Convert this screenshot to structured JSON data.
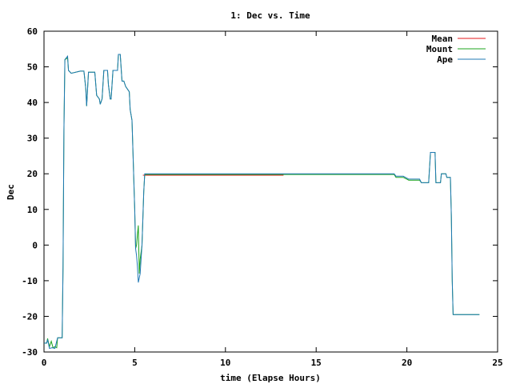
{
  "chart_data": {
    "type": "line",
    "title": "1: Dec vs. Time",
    "xlabel": "time (Elapse Hours)",
    "ylabel": "Dec",
    "xlim": [
      0,
      25
    ],
    "ylim": [
      -30,
      60
    ],
    "xticks": [
      0,
      5,
      10,
      15,
      20,
      25
    ],
    "yticks": [
      -30,
      -20,
      -10,
      0,
      10,
      20,
      30,
      40,
      50,
      60
    ],
    "grid": false,
    "legend_position": "top-right",
    "series": [
      {
        "name": "Mean",
        "color": "#e41a1c",
        "points": [
          [
            5.45,
            19.6
          ],
          [
            13.2,
            19.6
          ]
        ]
      },
      {
        "name": "Mount",
        "color": "#1ea51e",
        "points": [
          [
            0.0,
            -27.5
          ],
          [
            0.15,
            -27.5
          ],
          [
            0.2,
            -26.2
          ],
          [
            0.3,
            -28.5
          ],
          [
            0.4,
            -27.0
          ],
          [
            0.5,
            -28.8
          ],
          [
            0.6,
            -28.5
          ],
          [
            0.7,
            -28.8
          ],
          [
            0.75,
            -26.0
          ],
          [
            1.0,
            -26.0
          ],
          [
            1.05,
            -6.0
          ],
          [
            1.1,
            32.0
          ],
          [
            1.15,
            52.0
          ],
          [
            1.3,
            52.5
          ],
          [
            1.35,
            49.0
          ],
          [
            1.5,
            48.2
          ],
          [
            2.0,
            48.8
          ],
          [
            2.2,
            48.8
          ],
          [
            2.3,
            44.0
          ],
          [
            2.35,
            39.0
          ],
          [
            2.45,
            48.5
          ],
          [
            2.8,
            48.5
          ],
          [
            2.9,
            42.0
          ],
          [
            3.05,
            41.0
          ],
          [
            3.1,
            39.5
          ],
          [
            3.2,
            41.0
          ],
          [
            3.3,
            49.0
          ],
          [
            3.5,
            49.0
          ],
          [
            3.55,
            45.0
          ],
          [
            3.65,
            41.0
          ],
          [
            3.7,
            41.0
          ],
          [
            3.8,
            49.0
          ],
          [
            4.05,
            49.0
          ],
          [
            4.1,
            53.5
          ],
          [
            4.2,
            53.5
          ],
          [
            4.3,
            46.0
          ],
          [
            4.4,
            46.0
          ],
          [
            4.5,
            44.5
          ],
          [
            4.7,
            43.0
          ],
          [
            4.75,
            38.0
          ],
          [
            4.85,
            35.0
          ],
          [
            5.0,
            10.0
          ],
          [
            5.05,
            -1.0
          ],
          [
            5.1,
            0.0
          ],
          [
            5.15,
            3.0
          ],
          [
            5.2,
            5.5
          ],
          [
            5.25,
            -8.0
          ],
          [
            5.3,
            -4.0
          ],
          [
            5.4,
            0.0
          ],
          [
            5.5,
            15.0
          ],
          [
            5.55,
            19.8
          ],
          [
            13.5,
            19.8
          ],
          [
            19.3,
            19.8
          ],
          [
            19.4,
            19.0
          ],
          [
            19.8,
            19.0
          ],
          [
            20.1,
            18.2
          ],
          [
            20.7,
            18.2
          ],
          [
            20.8,
            17.5
          ],
          [
            21.2,
            17.5
          ],
          [
            21.3,
            26.0
          ],
          [
            21.55,
            26.0
          ],
          [
            21.6,
            17.5
          ],
          [
            21.85,
            17.5
          ],
          [
            21.9,
            20.0
          ],
          [
            22.15,
            20.0
          ],
          [
            22.2,
            19.0
          ],
          [
            22.4,
            19.0
          ],
          [
            22.45,
            8.0
          ],
          [
            22.5,
            -10.0
          ],
          [
            22.55,
            -19.5
          ],
          [
            24.0,
            -19.5
          ]
        ]
      },
      {
        "name": "Ape",
        "color": "#1f78b4",
        "points": [
          [
            0.0,
            -27.5
          ],
          [
            0.15,
            -27.5
          ],
          [
            0.2,
            -26.5
          ],
          [
            0.3,
            -29.0
          ],
          [
            0.45,
            -28.8
          ],
          [
            0.6,
            -29.0
          ],
          [
            0.75,
            -26.0
          ],
          [
            1.0,
            -26.0
          ],
          [
            1.05,
            -6.0
          ],
          [
            1.1,
            32.0
          ],
          [
            1.15,
            52.0
          ],
          [
            1.3,
            53.0
          ],
          [
            1.35,
            49.0
          ],
          [
            1.5,
            48.2
          ],
          [
            2.0,
            48.8
          ],
          [
            2.2,
            48.8
          ],
          [
            2.3,
            44.0
          ],
          [
            2.35,
            39.0
          ],
          [
            2.45,
            48.5
          ],
          [
            2.8,
            48.5
          ],
          [
            2.9,
            42.0
          ],
          [
            3.05,
            41.0
          ],
          [
            3.1,
            39.5
          ],
          [
            3.2,
            41.0
          ],
          [
            3.3,
            49.0
          ],
          [
            3.5,
            49.0
          ],
          [
            3.55,
            45.0
          ],
          [
            3.65,
            41.0
          ],
          [
            3.7,
            41.0
          ],
          [
            3.8,
            49.0
          ],
          [
            4.05,
            49.0
          ],
          [
            4.1,
            53.5
          ],
          [
            4.2,
            53.5
          ],
          [
            4.3,
            46.0
          ],
          [
            4.4,
            46.0
          ],
          [
            4.5,
            44.5
          ],
          [
            4.7,
            43.0
          ],
          [
            4.75,
            38.0
          ],
          [
            4.85,
            35.0
          ],
          [
            5.0,
            10.0
          ],
          [
            5.05,
            -1.0
          ],
          [
            5.1,
            -3.0
          ],
          [
            5.15,
            -6.0
          ],
          [
            5.2,
            -10.5
          ],
          [
            5.3,
            -8.0
          ],
          [
            5.4,
            0.0
          ],
          [
            5.5,
            15.0
          ],
          [
            5.55,
            20.0
          ],
          [
            13.5,
            20.0
          ],
          [
            19.3,
            20.0
          ],
          [
            19.4,
            19.3
          ],
          [
            19.8,
            19.3
          ],
          [
            20.1,
            18.5
          ],
          [
            20.7,
            18.5
          ],
          [
            20.8,
            17.5
          ],
          [
            21.2,
            17.5
          ],
          [
            21.3,
            26.0
          ],
          [
            21.55,
            26.0
          ],
          [
            21.6,
            17.5
          ],
          [
            21.85,
            17.5
          ],
          [
            21.9,
            20.0
          ],
          [
            22.15,
            20.0
          ],
          [
            22.2,
            19.0
          ],
          [
            22.4,
            19.0
          ],
          [
            22.45,
            8.0
          ],
          [
            22.5,
            -10.0
          ],
          [
            22.55,
            -19.5
          ],
          [
            24.0,
            -19.5
          ]
        ]
      }
    ]
  }
}
